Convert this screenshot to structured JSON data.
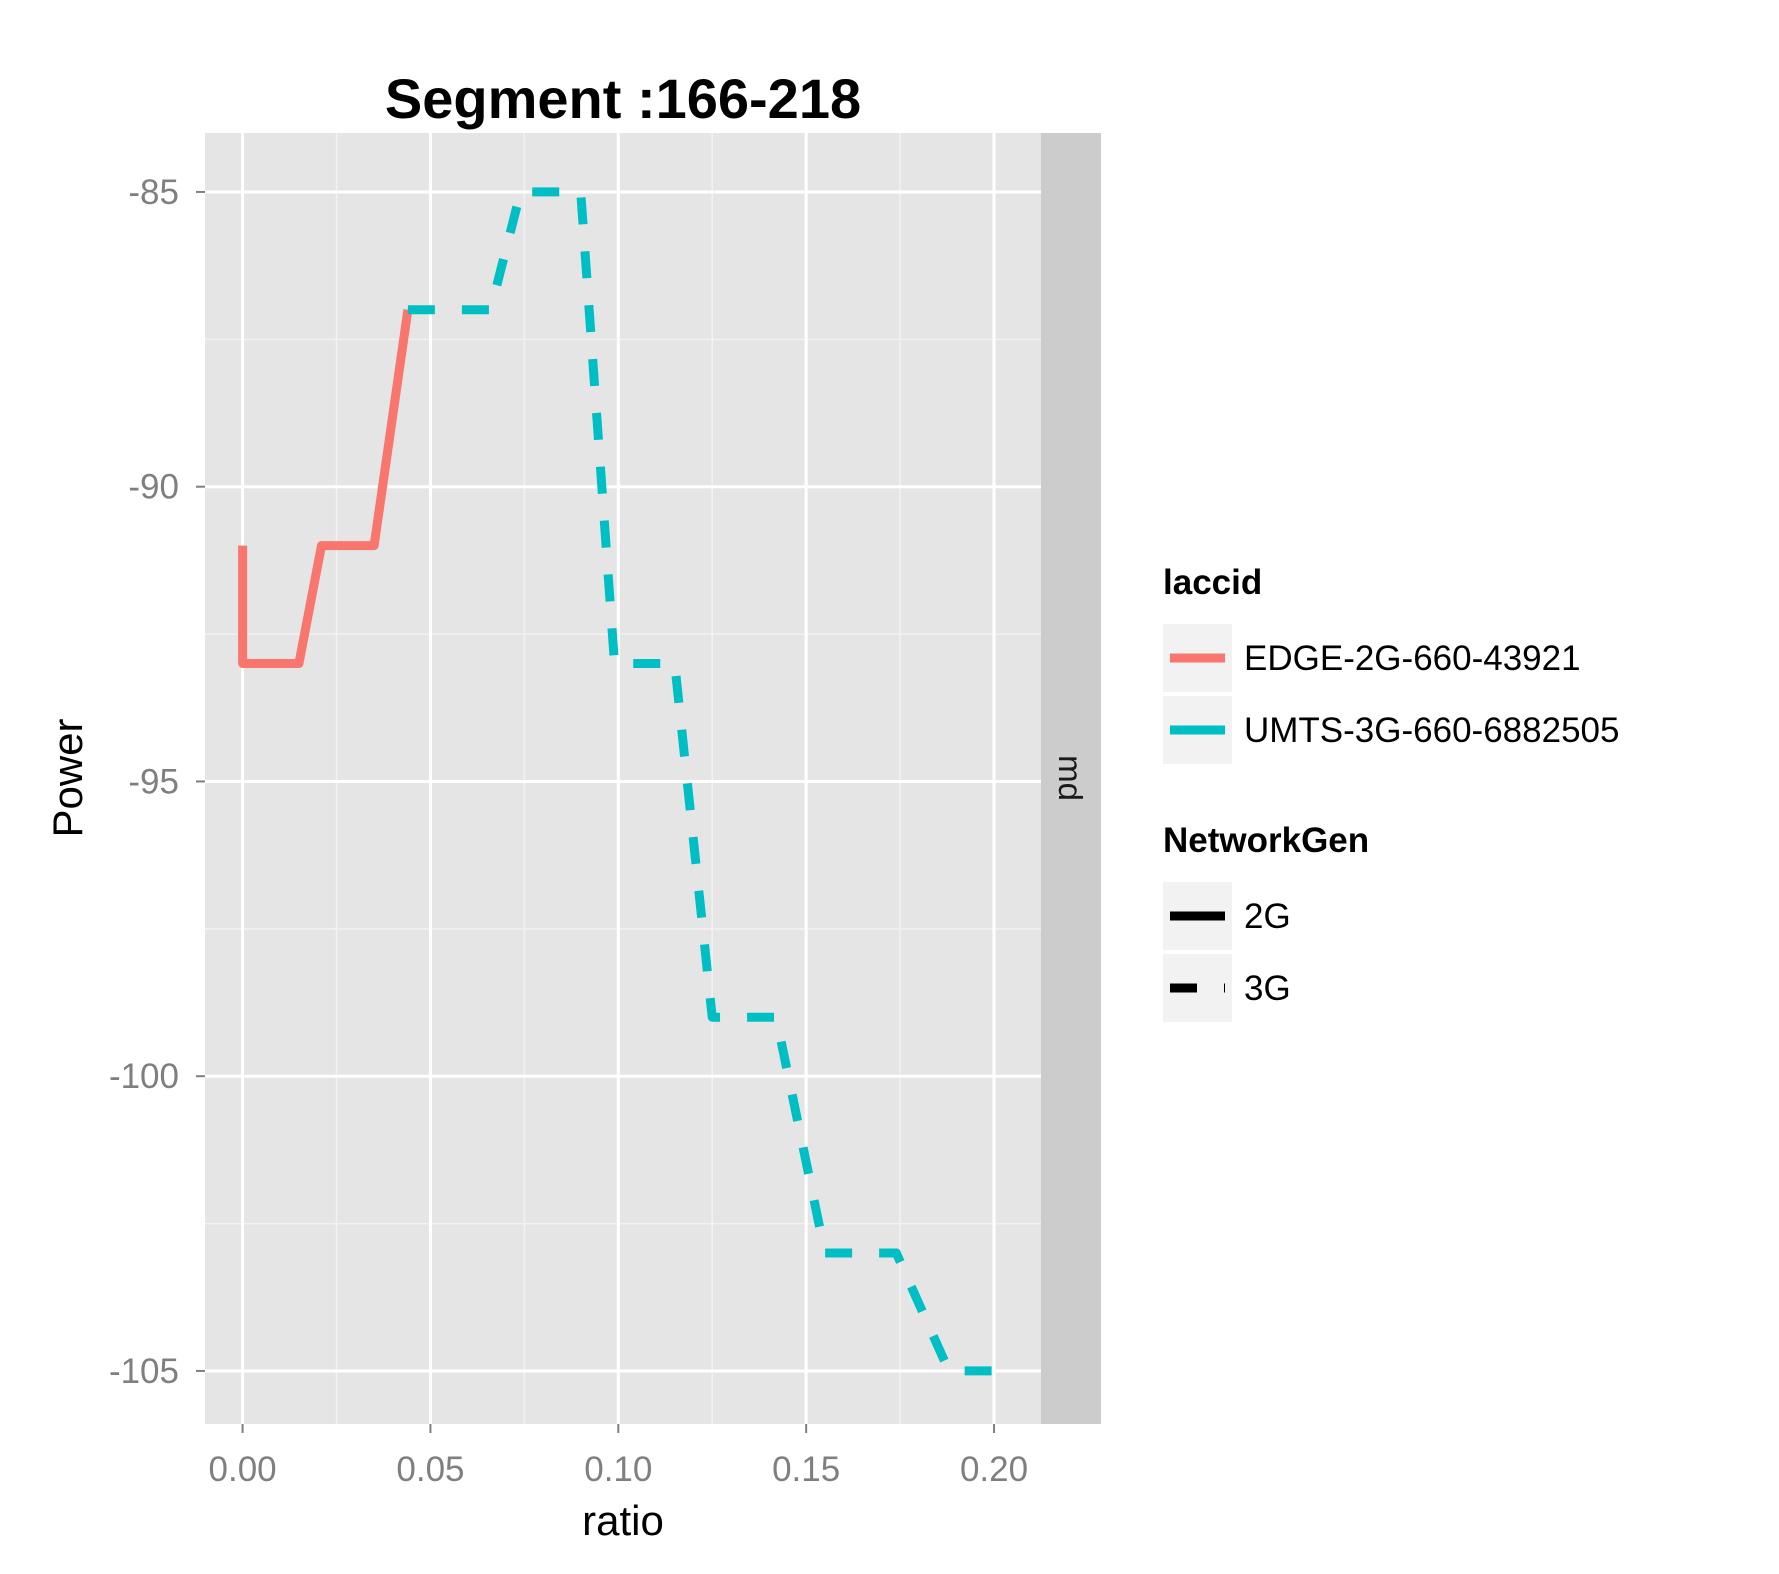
{
  "chart_data": {
    "type": "line",
    "title": "Segment :166-218",
    "xlabel": "ratio",
    "ylabel": "Power",
    "xlim": [
      -0.01,
      0.2125
    ],
    "ylim": [
      -105.9,
      -84.0
    ],
    "x_ticks": [
      0.0,
      0.05,
      0.1,
      0.15,
      0.2
    ],
    "x_tick_labels": [
      "0.00",
      "0.05",
      "0.10",
      "0.15",
      "0.20"
    ],
    "y_ticks": [
      -85,
      -90,
      -95,
      -100,
      -105
    ],
    "y_tick_labels": [
      "-85",
      "-90",
      "-95",
      "-100",
      "-105"
    ],
    "facet_strip": "md",
    "grid": true,
    "legend_position": "right",
    "series": [
      {
        "name": "EDGE-2G-660-43921",
        "color": "#f8766d",
        "linetype": "solid",
        "x": [
          0.0,
          0.0,
          0.015,
          0.021,
          0.035,
          0.044
        ],
        "y": [
          -91,
          -93,
          -93,
          -91,
          -91,
          -87
        ]
      },
      {
        "name": "UMTS-3G-660-6882505",
        "color": "#00bfc4",
        "linetype": "dashed",
        "x": [
          0.044,
          0.06,
          0.066,
          0.074,
          0.089,
          0.09,
          0.099,
          0.115,
          0.125,
          0.126,
          0.142,
          0.155,
          0.157,
          0.174,
          0.188,
          0.202
        ],
        "y": [
          -87,
          -87,
          -87,
          -85,
          -85,
          -85,
          -93,
          -93,
          -99,
          -99,
          -99,
          -103,
          -103,
          -103,
          -105,
          -105
        ]
      }
    ],
    "legends": [
      {
        "title": "laccid",
        "entries": [
          {
            "label": "EDGE-2G-660-43921",
            "color": "#f8766d",
            "linetype": "solid"
          },
          {
            "label": "UMTS-3G-660-6882505",
            "color": "#00bfc4",
            "linetype": "solid"
          }
        ]
      },
      {
        "title": "NetworkGen",
        "entries": [
          {
            "label": "2G",
            "color": "#000000",
            "linetype": "solid"
          },
          {
            "label": "3G",
            "color": "#000000",
            "linetype": "dashed"
          }
        ]
      }
    ]
  },
  "colors": {
    "panel_background": "#e5e5e5",
    "grid_line": "#ffffff",
    "strip_background": "#cccccc",
    "legend_key_background": "#f2f2f2"
  }
}
